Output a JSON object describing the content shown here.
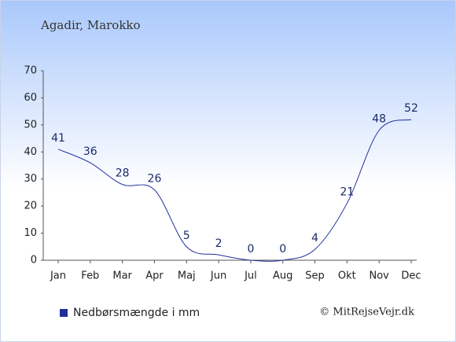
{
  "chart_data": {
    "type": "line",
    "title": "Agadir, Marokko",
    "categories": [
      "Jan",
      "Feb",
      "Mar",
      "Apr",
      "Maj",
      "Jun",
      "Jul",
      "Aug",
      "Sep",
      "Okt",
      "Nov",
      "Dec"
    ],
    "series": [
      {
        "name": "Nedbørsmængde i mm",
        "color": "#1f2f9c",
        "values": [
          41,
          36,
          28,
          26,
          5,
          2,
          0,
          0,
          4,
          21,
          48,
          52
        ]
      }
    ],
    "ylim": [
      0,
      70
    ],
    "yticks": [
      0,
      10,
      20,
      30,
      40,
      50,
      60,
      70
    ],
    "legend": "bottom-left",
    "credit": "© MitRejseVejr.dk"
  }
}
